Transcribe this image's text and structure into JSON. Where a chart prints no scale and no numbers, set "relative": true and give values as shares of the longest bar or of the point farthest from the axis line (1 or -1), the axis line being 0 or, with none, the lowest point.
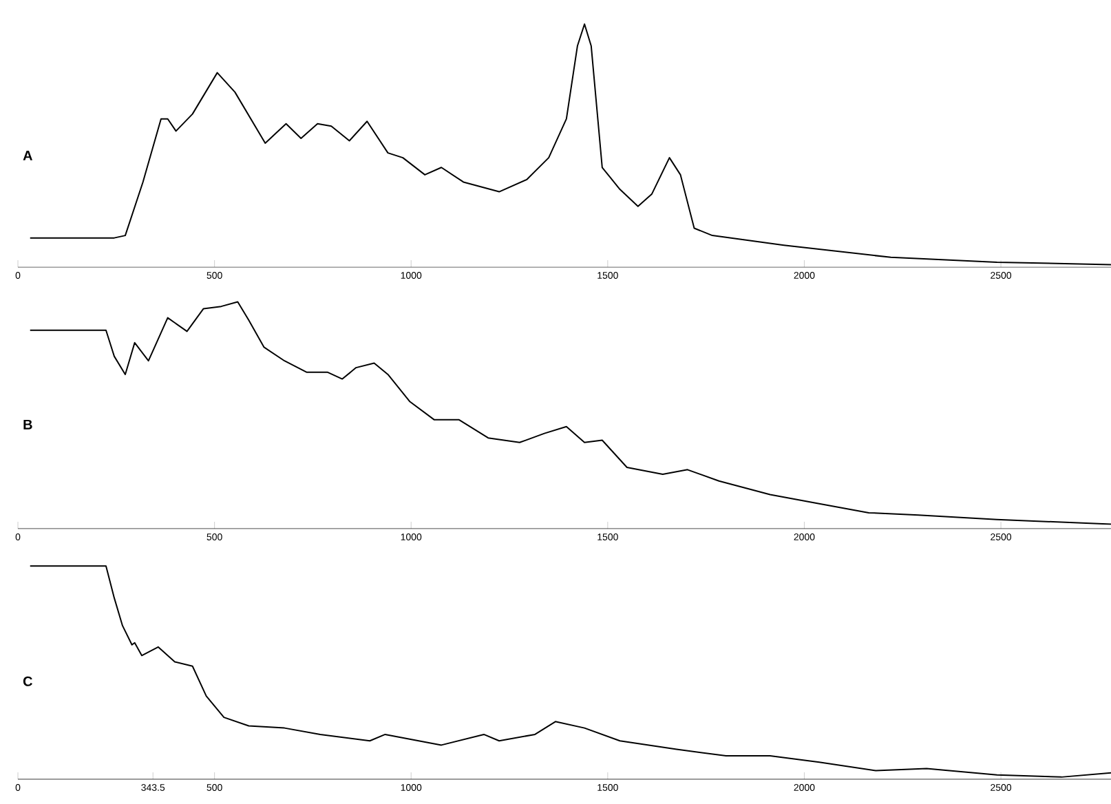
{
  "chart_data": [
    {
      "type": "line",
      "title": "A",
      "relative": true,
      "xlim": [
        0,
        2780
      ],
      "xticks": [
        0,
        500,
        1000,
        1500,
        2000,
        2500
      ],
      "x": [
        31,
        245,
        273,
        318,
        364,
        381,
        402,
        444,
        507,
        552,
        629,
        682,
        720,
        762,
        797,
        843,
        888,
        941,
        979,
        1035,
        1077,
        1133,
        1224,
        1294,
        1350,
        1395,
        1423,
        1441,
        1458,
        1486,
        1531,
        1577,
        1612,
        1657,
        1685,
        1720,
        1766,
        1948,
        2220,
        2490,
        2780
      ],
      "series": [
        {
          "color": "#000000",
          "values": [
            0.12,
            0.12,
            0.13,
            0.35,
            0.61,
            0.61,
            0.56,
            0.63,
            0.8,
            0.72,
            0.51,
            0.59,
            0.53,
            0.59,
            0.58,
            0.52,
            0.6,
            0.47,
            0.45,
            0.38,
            0.41,
            0.35,
            0.31,
            0.36,
            0.45,
            0.61,
            0.91,
            1,
            0.91,
            0.41,
            0.32,
            0.25,
            0.3,
            0.45,
            0.38,
            0.16,
            0.13,
            0.09,
            0.04,
            0.02,
            0.01
          ]
        }
      ]
    },
    {
      "type": "line",
      "title": "B",
      "relative": true,
      "xlim": [
        0,
        2780
      ],
      "xticks": [
        0,
        500,
        1000,
        1500,
        2000,
        2500
      ],
      "x": [
        31,
        224,
        245,
        273,
        297,
        332,
        381,
        430,
        472,
        517,
        559,
        587,
        626,
        678,
        734,
        787,
        825,
        860,
        906,
        941,
        997,
        1059,
        1122,
        1196,
        1276,
        1339,
        1395,
        1441,
        1486,
        1549,
        1640,
        1703,
        1783,
        1913,
        2038,
        2164,
        2290,
        2490,
        2780
      ],
      "series": [
        {
          "color": "#000000",
          "values": [
            0.875,
            0.875,
            0.76,
            0.68,
            0.82,
            0.74,
            0.93,
            0.87,
            0.97,
            0.98,
            1,
            0.92,
            0.8,
            0.74,
            0.69,
            0.69,
            0.66,
            0.71,
            0.73,
            0.68,
            0.56,
            0.48,
            0.48,
            0.4,
            0.38,
            0.42,
            0.45,
            0.38,
            0.39,
            0.27,
            0.24,
            0.26,
            0.21,
            0.15,
            0.11,
            0.07,
            0.06,
            0.04,
            0.02
          ]
        }
      ]
    },
    {
      "type": "line",
      "title": "C",
      "relative": true,
      "xlim": [
        0,
        2780
      ],
      "xticks": [
        0,
        343.5,
        500,
        1000,
        1500,
        2000,
        2500
      ],
      "x": [
        31,
        224,
        245,
        266,
        290,
        297,
        315,
        357,
        399,
        444,
        479,
        524,
        587,
        678,
        769,
        895,
        934,
        1077,
        1185,
        1224,
        1315,
        1367,
        1441,
        1531,
        1675,
        1801,
        1913,
        2038,
        2182,
        2311,
        2490,
        2654,
        2780
      ],
      "series": [
        {
          "color": "#000000",
          "values": [
            1,
            1,
            0.85,
            0.72,
            0.63,
            0.64,
            0.58,
            0.62,
            0.55,
            0.53,
            0.39,
            0.29,
            0.25,
            0.24,
            0.21,
            0.18,
            0.21,
            0.16,
            0.21,
            0.18,
            0.21,
            0.27,
            0.24,
            0.18,
            0.14,
            0.11,
            0.11,
            0.08,
            0.04,
            0.05,
            0.02,
            0.01,
            0.03
          ]
        }
      ]
    }
  ]
}
